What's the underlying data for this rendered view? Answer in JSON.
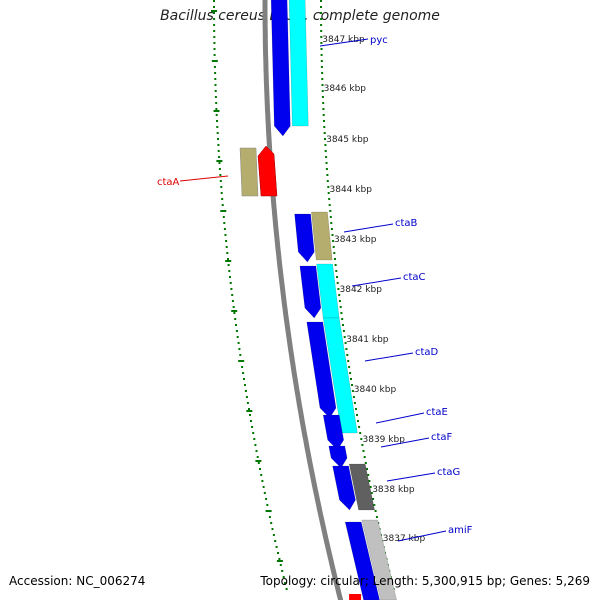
{
  "title": "Bacillus cereus E33L, complete genome",
  "footer": {
    "accession": "Accession: NC_006274",
    "topology": "Topology: circular; Length: 5,300,915 bp; Genes: 5,269"
  },
  "colors": {
    "backbone": "#808080",
    "forward_cds": "#0000ee",
    "reverse_cds": "#00ffff",
    "reverse_gene_highlight": "#ff0000",
    "tan": "#b4ad6e",
    "dark_gray": "#606060",
    "light_gray": "#c0c0c0",
    "tick_green": "#007700",
    "label_blue": "#0000cc",
    "label_red": "#dd0000"
  },
  "ticks": [
    {
      "label": "3847 kbp"
    },
    {
      "label": "3846 kbp"
    },
    {
      "label": "3845 kbp"
    },
    {
      "label": "3844 kbp"
    },
    {
      "label": "3843 kbp"
    },
    {
      "label": "3842 kbp"
    },
    {
      "label": "3841 kbp"
    },
    {
      "label": "3840 kbp"
    },
    {
      "label": "3839 kbp"
    },
    {
      "label": "3838 kbp"
    },
    {
      "label": "3837 kbp"
    }
  ],
  "genes": [
    {
      "name": "pyc",
      "color": "blue"
    },
    {
      "name": "ctaA",
      "color": "red"
    },
    {
      "name": "ctaB",
      "color": "blue"
    },
    {
      "name": "ctaC",
      "color": "blue"
    },
    {
      "name": "ctaD",
      "color": "blue"
    },
    {
      "name": "ctaE",
      "color": "blue"
    },
    {
      "name": "ctaF",
      "color": "blue"
    },
    {
      "name": "ctaG",
      "color": "blue"
    },
    {
      "name": "amiF",
      "color": "blue"
    }
  ]
}
